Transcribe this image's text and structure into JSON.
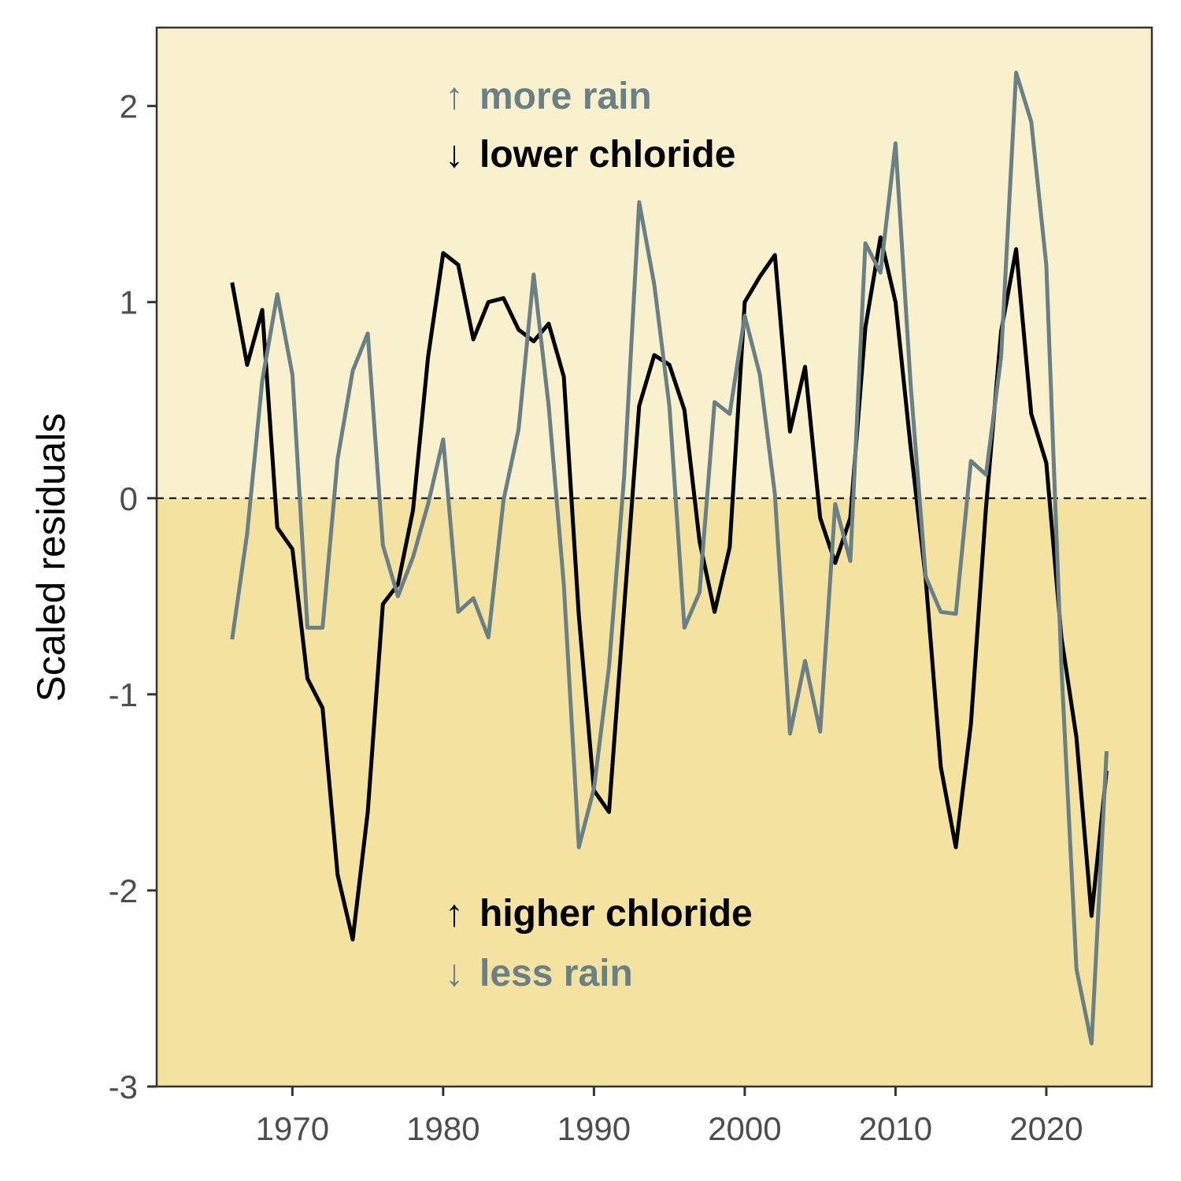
{
  "chart_data": {
    "type": "line",
    "ylabel": "Scaled residuals",
    "xlabel": "",
    "xlim": [
      1961,
      2027
    ],
    "ylim": [
      -3,
      2.4
    ],
    "x_ticks": [
      1970,
      1980,
      1990,
      2000,
      2010,
      2020
    ],
    "y_ticks": [
      -3,
      -2,
      -1,
      0,
      1,
      2
    ],
    "reference_line": {
      "y": 0,
      "style": "dashed"
    },
    "background": {
      "upper_color": "#f9f0cd",
      "lower_color": "#f4e3a0"
    },
    "grid": false,
    "annotations": {
      "top": [
        {
          "arrow": "↑",
          "text": "more rain",
          "color": "#6a8087"
        },
        {
          "arrow": "↓",
          "text": "lower chloride",
          "color": "#000000"
        }
      ],
      "bottom": [
        {
          "arrow": "↑",
          "text": "higher chloride",
          "color": "#000000"
        },
        {
          "arrow": "↓",
          "text": "less rain",
          "color": "#6a8087"
        }
      ]
    },
    "series": [
      {
        "color": "#000000",
        "x": [
          1966,
          1967,
          1968,
          1969,
          1970,
          1971,
          1972,
          1973,
          1974,
          1975,
          1976,
          1977,
          1978,
          1979,
          1980,
          1981,
          1982,
          1983,
          1984,
          1985,
          1986,
          1987,
          1988,
          1989,
          1990,
          1991,
          1992,
          1993,
          1994,
          1995,
          1996,
          1997,
          1998,
          1999,
          2000,
          2001,
          2002,
          2003,
          2004,
          2005,
          2006,
          2007,
          2008,
          2009,
          2010,
          2011,
          2012,
          2013,
          2014,
          2015,
          2016,
          2017,
          2018,
          2019,
          2020,
          2021,
          2022,
          2023,
          2024
        ],
        "values": [
          1.1,
          0.68,
          0.96,
          -0.15,
          -0.26,
          -0.92,
          -1.07,
          -1.92,
          -2.25,
          -1.6,
          -0.54,
          -0.44,
          -0.06,
          0.72,
          1.25,
          1.19,
          0.81,
          1.0,
          1.02,
          0.86,
          0.8,
          0.89,
          0.62,
          -0.6,
          -1.49,
          -1.6,
          -0.56,
          0.47,
          0.73,
          0.68,
          0.45,
          -0.22,
          -0.58,
          -0.25,
          1.0,
          1.13,
          1.24,
          0.34,
          0.67,
          -0.1,
          -0.33,
          -0.1,
          0.87,
          1.33,
          1.0,
          0.26,
          -0.41,
          -1.37,
          -1.78,
          -1.15,
          -0.05,
          0.85,
          1.27,
          0.43,
          0.18,
          -0.71,
          -1.22,
          -2.13,
          -1.39
        ]
      },
      {
        "color": "#6a8087",
        "x": [
          1966,
          1967,
          1968,
          1969,
          1970,
          1971,
          1972,
          1973,
          1974,
          1975,
          1976,
          1977,
          1978,
          1979,
          1980,
          1981,
          1982,
          1983,
          1984,
          1985,
          1986,
          1987,
          1988,
          1989,
          1990,
          1991,
          1992,
          1993,
          1994,
          1995,
          1996,
          1997,
          1998,
          1999,
          2000,
          2001,
          2002,
          2003,
          2004,
          2005,
          2006,
          2007,
          2008,
          2009,
          2010,
          2011,
          2012,
          2013,
          2014,
          2015,
          2016,
          2017,
          2018,
          2019,
          2020,
          2021,
          2022,
          2023,
          2024
        ],
        "values": [
          -0.72,
          -0.18,
          0.6,
          1.04,
          0.63,
          -0.66,
          -0.66,
          0.2,
          0.65,
          0.84,
          -0.24,
          -0.5,
          -0.3,
          -0.03,
          0.3,
          -0.58,
          -0.51,
          -0.71,
          -0.01,
          0.35,
          1.14,
          0.47,
          -0.44,
          -1.78,
          -1.48,
          -0.86,
          0.11,
          1.51,
          1.09,
          0.47,
          -0.66,
          -0.48,
          0.49,
          0.43,
          0.93,
          0.63,
          0.02,
          -1.2,
          -0.83,
          -1.19,
          -0.03,
          -0.32,
          1.3,
          1.15,
          1.81,
          0.58,
          -0.4,
          -0.58,
          -0.59,
          0.19,
          0.12,
          0.72,
          2.17,
          1.92,
          1.19,
          -0.86,
          -2.4,
          -2.78,
          -1.29
        ]
      }
    ]
  }
}
